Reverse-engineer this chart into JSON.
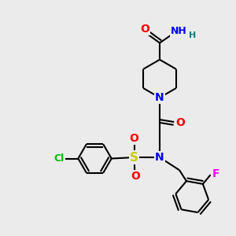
{
  "background_color": "#ebebeb",
  "atom_colors": {
    "C": "#000000",
    "N": "#0000ff",
    "O": "#ff0000",
    "S": "#cccc00",
    "Cl": "#00bb00",
    "F": "#ff00ff",
    "H": "#008080"
  },
  "bond_color": "#000000",
  "bond_width": 1.5,
  "font_size": 8,
  "fig_width": 3.0,
  "fig_height": 3.0,
  "dpi": 100
}
